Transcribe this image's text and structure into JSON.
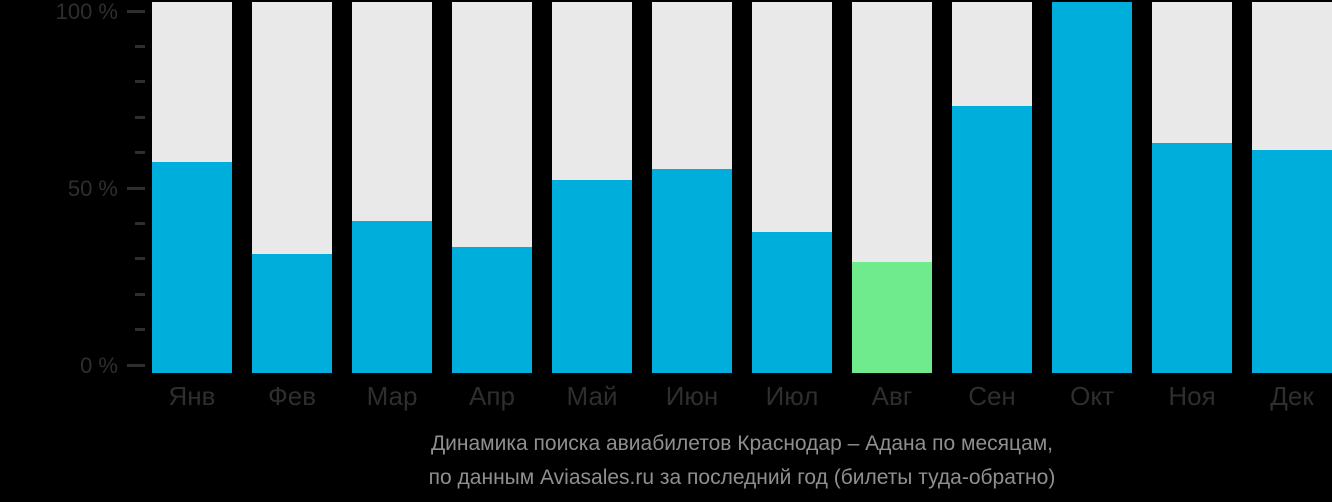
{
  "chart_data": {
    "type": "bar",
    "title": "Динамика поиска авиабилетов Краснодар – Адана по месяцам,",
    "subtitle": "по данным Aviasales.ru за последний год (билеты туда-обратно)",
    "categories": [
      "Янв",
      "Фев",
      "Мар",
      "Апр",
      "Май",
      "Июн",
      "Июл",
      "Авг",
      "Сен",
      "Окт",
      "Ноя",
      "Дек"
    ],
    "values": [
      57,
      32,
      41,
      34,
      52,
      55,
      38,
      30,
      72,
      100,
      62,
      60
    ],
    "unit": "%",
    "highlight_index": 7,
    "highlighted_category": "Авг",
    "ylim": [
      0,
      100
    ],
    "y_ticks": [
      0,
      10,
      20,
      30,
      40,
      50,
      60,
      70,
      80,
      90,
      100
    ],
    "y_tick_labels": [
      {
        "value": 0,
        "label": "0 %"
      },
      {
        "value": 50,
        "label": "50 %"
      },
      {
        "value": 100,
        "label": "100 %"
      }
    ],
    "grid": false,
    "legend": null,
    "colors": {
      "background": "#000000",
      "bar": "#00AEDC",
      "highlighted_bar": "#6FEB8E",
      "column_track": "#E9E9E9",
      "axis_text": "#2E2E2E",
      "month_text": "#2E2E2E",
      "caption_text": "#8F8F8F"
    }
  }
}
